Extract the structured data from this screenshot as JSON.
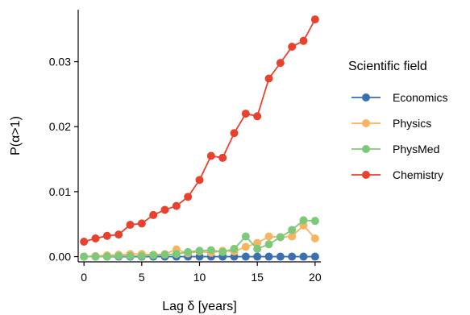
{
  "chart_data": {
    "type": "line",
    "title": "",
    "xlabel": "Lag δ [years]",
    "ylabel": "P(α>1)",
    "xlim": [
      -0.5,
      20.5
    ],
    "ylim": [
      -0.0008,
      0.038
    ],
    "x_ticks": [
      0,
      5,
      10,
      15,
      20
    ],
    "x_tick_labels": [
      "0",
      "5",
      "10",
      "15",
      "20"
    ],
    "y_ticks": [
      0.0,
      0.01,
      0.02,
      0.03
    ],
    "y_tick_labels": [
      "0.00",
      "0.01",
      "0.02",
      "0.03"
    ],
    "grid": false,
    "legend": {
      "title": "Scientific field",
      "position": "right"
    },
    "x": [
      0,
      1,
      2,
      3,
      4,
      5,
      6,
      7,
      8,
      9,
      10,
      11,
      12,
      13,
      14,
      15,
      16,
      17,
      18,
      19,
      20
    ],
    "series": [
      {
        "name": "Economics",
        "color": "#3a6fb0",
        "values": [
          0,
          0,
          0,
          0,
          0,
          0,
          0,
          0,
          0,
          0,
          0,
          0,
          0,
          0,
          0,
          0,
          0,
          0,
          0,
          0,
          0
        ]
      },
      {
        "name": "Physics",
        "color": "#f7b462",
        "values": [
          0,
          0.0001,
          0.0002,
          0.0003,
          0.0004,
          0.0004,
          0.0003,
          0.0004,
          0.0011,
          0.0005,
          0.0008,
          0.0006,
          0.0009,
          0.0008,
          0.0015,
          0.0021,
          0.0031,
          0.003,
          0.0031,
          0.0048,
          0.0028
        ]
      },
      {
        "name": "PhysMed",
        "color": "#7ec87a",
        "values": [
          0,
          0,
          0,
          0.0001,
          0.0001,
          0.0001,
          0.0002,
          0.0003,
          0.0004,
          0.0007,
          0.0009,
          0.001,
          0.0007,
          0.0012,
          0.0031,
          0.0012,
          0.0019,
          0.003,
          0.0041,
          0.0056,
          0.0055
        ]
      },
      {
        "name": "Chemistry",
        "color": "#e8412d",
        "values": [
          0.0023,
          0.0028,
          0.0032,
          0.0034,
          0.0049,
          0.0051,
          0.0064,
          0.0072,
          0.0078,
          0.0092,
          0.0118,
          0.0155,
          0.0152,
          0.019,
          0.022,
          0.0216,
          0.0274,
          0.0298,
          0.0323,
          0.0332,
          0.0365
        ]
      }
    ]
  }
}
